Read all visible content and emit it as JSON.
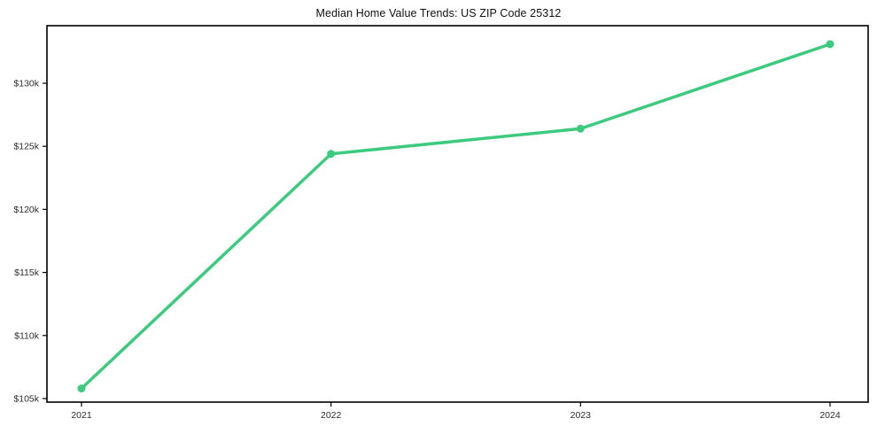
{
  "chart_data": {
    "type": "line",
    "title": "Median Home Value Trends: US ZIP Code 25312",
    "x": [
      2021,
      2022,
      2023,
      2024
    ],
    "values": [
      105800,
      124400,
      126400,
      133100
    ],
    "x_tick_labels": [
      "2021",
      "2022",
      "2023",
      "2024"
    ],
    "y_tick_values": [
      105000,
      110000,
      115000,
      120000,
      125000,
      130000
    ],
    "y_tick_labels": [
      "$105k",
      "$110k",
      "$115k",
      "$120k",
      "$125k",
      "$130k"
    ],
    "xlabel": "",
    "ylabel": "",
    "ylim": [
      104700,
      134600
    ],
    "grid": false,
    "legend": "none",
    "line_color": "#3ccb7e",
    "marker": "circle",
    "frame_color": "#000000",
    "tick_text_color": "#2e2e2e",
    "background_color": "#ffffff"
  }
}
